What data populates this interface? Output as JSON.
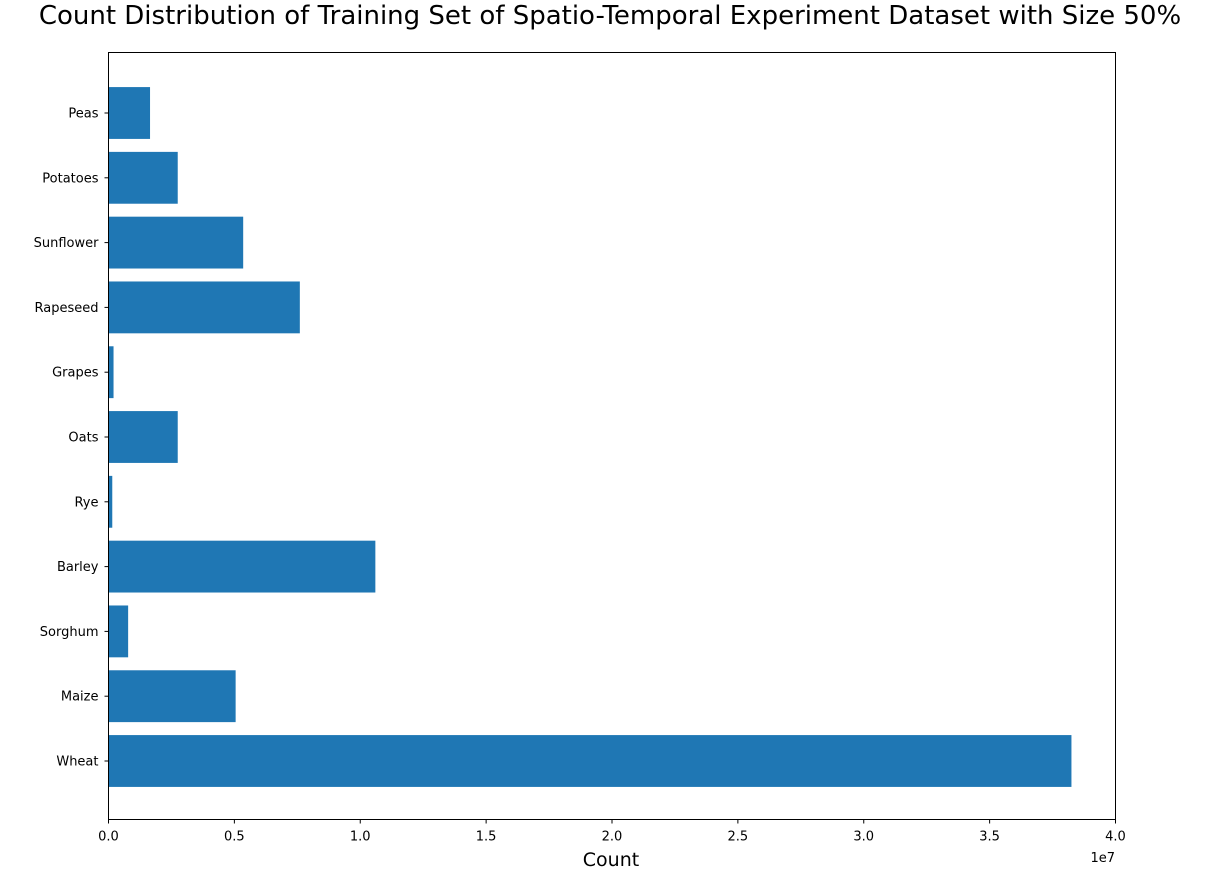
{
  "chart_data": {
    "type": "bar",
    "orientation": "horizontal",
    "title": "Count Distribution of Training Set of Spatio-Temporal Experiment Dataset with Size 50%",
    "xlabel": "Count",
    "ylabel": "",
    "x_offset_label": "1e7",
    "x_scale": 10000000,
    "xlim": [
      0,
      40000000
    ],
    "x_ticks": [
      0,
      5000000,
      10000000,
      15000000,
      20000000,
      25000000,
      30000000,
      35000000,
      40000000
    ],
    "x_tick_labels": [
      "0.0",
      "0.5",
      "1.0",
      "1.5",
      "2.0",
      "2.5",
      "3.0",
      "3.5",
      "4.0"
    ],
    "categories": [
      "Wheat",
      "Maize",
      "Sorghum",
      "Barley",
      "Rye",
      "Oats",
      "Grapes",
      "Rapeseed",
      "Sunflower",
      "Potatoes",
      "Peas"
    ],
    "values": [
      38250000,
      5050000,
      780000,
      10600000,
      150000,
      2750000,
      200000,
      7600000,
      5350000,
      2750000,
      1650000
    ],
    "bar_color": "#1f77b4",
    "grid": false,
    "legend": "none"
  }
}
